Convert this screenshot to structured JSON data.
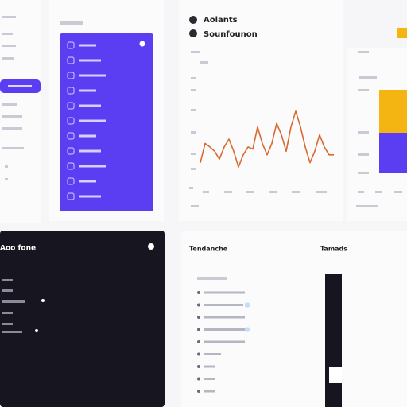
{
  "header": {
    "title": "Aolants",
    "subtitle": "Sounfounon"
  },
  "dark_panel": {
    "title": "Aoo fone"
  },
  "bottom_card": {
    "title": "Tendanche",
    "side_title": "Tamads"
  },
  "line_chart": {
    "type": "line",
    "color": "#d9692f",
    "ylim": [
      0,
      100
    ],
    "values": [
      17,
      44,
      39,
      33,
      22,
      39,
      50,
      33,
      11,
      28,
      39,
      36,
      67,
      44,
      28,
      44,
      72,
      56,
      33,
      67,
      89,
      67,
      39,
      17,
      33,
      56,
      39,
      28,
      28
    ]
  },
  "bar_chart": {
    "type": "bar",
    "ylim": [
      0,
      105
    ],
    "series": [
      {
        "color": "#5b3df2",
        "values": [
          51
        ]
      },
      {
        "color": "#f4b512",
        "values": [
          54
        ]
      }
    ]
  }
}
